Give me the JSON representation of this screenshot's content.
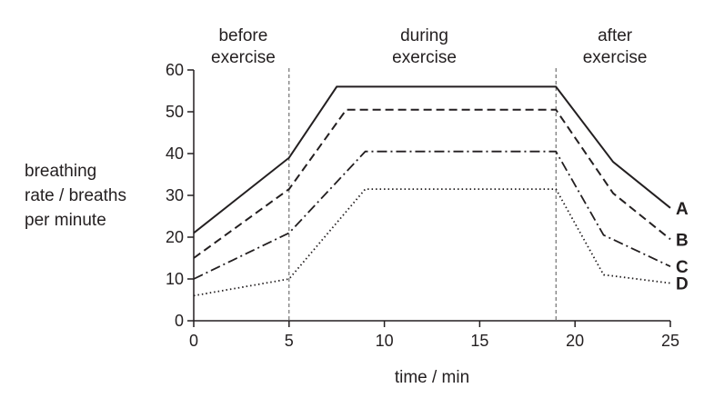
{
  "chart_data": {
    "type": "line",
    "xlabel": "time / min",
    "ylabel": [
      "breathing",
      "rate / breaths",
      "per minute"
    ],
    "xlim": [
      0,
      25
    ],
    "ylim": [
      0,
      60
    ],
    "x_ticks": [
      0,
      5,
      10,
      15,
      20,
      25
    ],
    "y_ticks": [
      0,
      10,
      20,
      30,
      40,
      50,
      60
    ],
    "grid": false,
    "phase_dividers": [
      5,
      19
    ],
    "phases": [
      {
        "lines": [
          "before",
          "exercise"
        ]
      },
      {
        "lines": [
          "during",
          "exercise"
        ]
      },
      {
        "lines": [
          "after",
          "exercise"
        ]
      }
    ],
    "series": [
      {
        "name": "A",
        "line_style": "solid",
        "points": [
          [
            0,
            21
          ],
          [
            5,
            39
          ],
          [
            7.5,
            56
          ],
          [
            19,
            56
          ],
          [
            22,
            38
          ],
          [
            25,
            27
          ]
        ]
      },
      {
        "name": "B",
        "line_style": "dashed",
        "points": [
          [
            0,
            15
          ],
          [
            5,
            31.5
          ],
          [
            8,
            50.5
          ],
          [
            19,
            50.5
          ],
          [
            22,
            30.5
          ],
          [
            25,
            19.5
          ]
        ]
      },
      {
        "name": "C",
        "line_style": "dash-dot",
        "points": [
          [
            0,
            10
          ],
          [
            5,
            21
          ],
          [
            9,
            40.5
          ],
          [
            19,
            40.5
          ],
          [
            21.5,
            20.5
          ],
          [
            25,
            13
          ]
        ]
      },
      {
        "name": "D",
        "line_style": "dotted",
        "points": [
          [
            0,
            6
          ],
          [
            5,
            10
          ],
          [
            9,
            31.5
          ],
          [
            19,
            31.5
          ],
          [
            21.5,
            11
          ],
          [
            25,
            9
          ]
        ]
      }
    ],
    "colors": {
      "ink": "#231f20",
      "divider": "#555555"
    }
  }
}
